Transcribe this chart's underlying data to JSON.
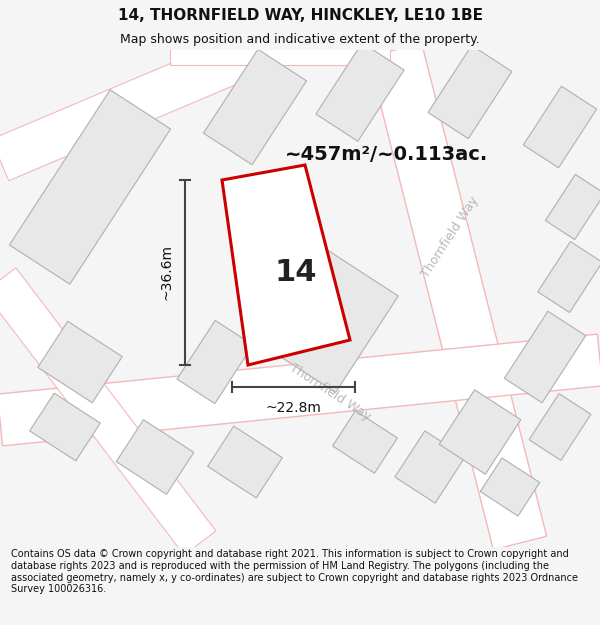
{
  "title": "14, THORNFIELD WAY, HINCKLEY, LE10 1BE",
  "subtitle": "Map shows position and indicative extent of the property.",
  "footer": "Contains OS data © Crown copyright and database right 2021. This information is subject to Crown copyright and database rights 2023 and is reproduced with the permission of HM Land Registry. The polygons (including the associated geometry, namely x, y co-ordinates) are subject to Crown copyright and database rights 2023 Ordnance Survey 100026316.",
  "area_label": "~457m²/~0.113ac.",
  "number_label": "14",
  "width_label": "~22.8m",
  "height_label": "~36.6m",
  "bg_color": "#f5f5f5",
  "map_bg": "#ffffff",
  "property_fill": "#ffffff",
  "property_edge": "#cc0000",
  "building_fill": "#e8e8e8",
  "building_edge": "#b0b0b0",
  "road_edge_color": "#f5b8b8",
  "dim_line_color": "#444444",
  "road_label_color": "#b8b8b8",
  "title_fontsize": 11,
  "subtitle_fontsize": 9,
  "footer_fontsize": 7.0,
  "area_fontsize": 14,
  "number_fontsize": 22,
  "road_label_fontsize": 9,
  "dim_fontsize": 10
}
